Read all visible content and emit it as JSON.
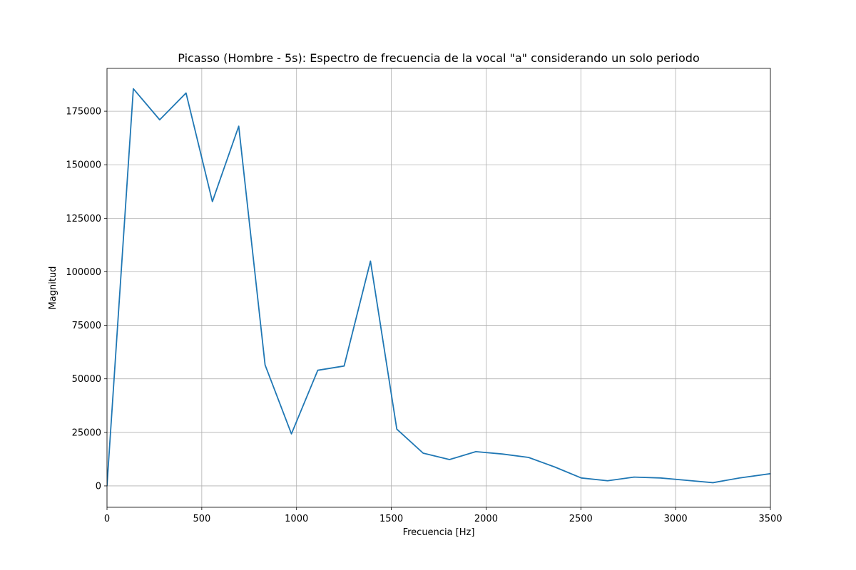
{
  "chart_data": {
    "type": "line",
    "title": "Picasso (Hombre - 5s): Espectro de frecuencia de la vocal \"a\" considerando un solo periodo",
    "xlabel": "Frecuencia [Hz]",
    "ylabel": "Magnitud",
    "xlim": [
      0,
      3500
    ],
    "ylim": [
      -10000,
      195000
    ],
    "xticks": [
      0,
      500,
      1000,
      1500,
      2000,
      2500,
      3000,
      3500
    ],
    "xtick_labels": [
      "0",
      "500",
      "1000",
      "1500",
      "2000",
      "2500",
      "3000",
      "3500"
    ],
    "yticks": [
      0,
      25000,
      50000,
      75000,
      100000,
      125000,
      150000,
      175000
    ],
    "ytick_labels": [
      "0",
      "25000",
      "50000",
      "75000",
      "100000",
      "125000",
      "150000",
      "175000"
    ],
    "grid": true,
    "color": "#1f77b4",
    "series": [
      {
        "x": [
          0,
          139,
          278,
          417,
          556,
          695,
          834,
          973,
          1112,
          1251,
          1390,
          1529,
          1668,
          1807,
          1946,
          2085,
          2224,
          2363,
          2502,
          2641,
          2780,
          2919,
          3058,
          3197,
          3336,
          3500
        ],
        "values": [
          200,
          185500,
          171000,
          183500,
          132800,
          168000,
          56500,
          24300,
          54000,
          56000,
          105000,
          26500,
          15300,
          12300,
          16000,
          14900,
          13300,
          8800,
          3700,
          2400,
          4100,
          3700,
          2600,
          1500,
          3700,
          5700
        ]
      }
    ]
  }
}
